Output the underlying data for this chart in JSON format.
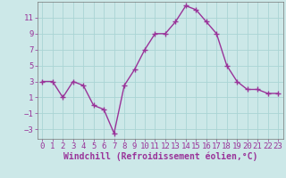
{
  "x": [
    0,
    1,
    2,
    3,
    4,
    5,
    6,
    7,
    8,
    9,
    10,
    11,
    12,
    13,
    14,
    15,
    16,
    17,
    18,
    19,
    20,
    21,
    22,
    23
  ],
  "y": [
    3,
    3,
    1,
    3,
    2.5,
    0,
    -0.5,
    -3.5,
    2.5,
    4.5,
    7,
    9,
    9,
    10.5,
    12.5,
    12,
    10.5,
    9,
    5,
    3,
    2,
    2,
    1.5,
    1.5
  ],
  "line_color": "#993399",
  "marker_color": "#993399",
  "bg_color": "#cce8e8",
  "grid_color": "#aad4d4",
  "xlabel": "Windchill (Refroidissement éolien,°C)",
  "xlabel_color": "#993399",
  "tick_color": "#993399",
  "ylim": [
    -4.2,
    13.0
  ],
  "xlim": [
    -0.5,
    23.5
  ],
  "yticks": [
    -3,
    -1,
    1,
    3,
    5,
    7,
    9,
    11
  ],
  "xticks": [
    0,
    1,
    2,
    3,
    4,
    5,
    6,
    7,
    8,
    9,
    10,
    11,
    12,
    13,
    14,
    15,
    16,
    17,
    18,
    19,
    20,
    21,
    22,
    23
  ],
  "tick_fontsize": 6.5,
  "xlabel_fontsize": 7.0,
  "marker_size": 4,
  "linewidth": 1.0
}
